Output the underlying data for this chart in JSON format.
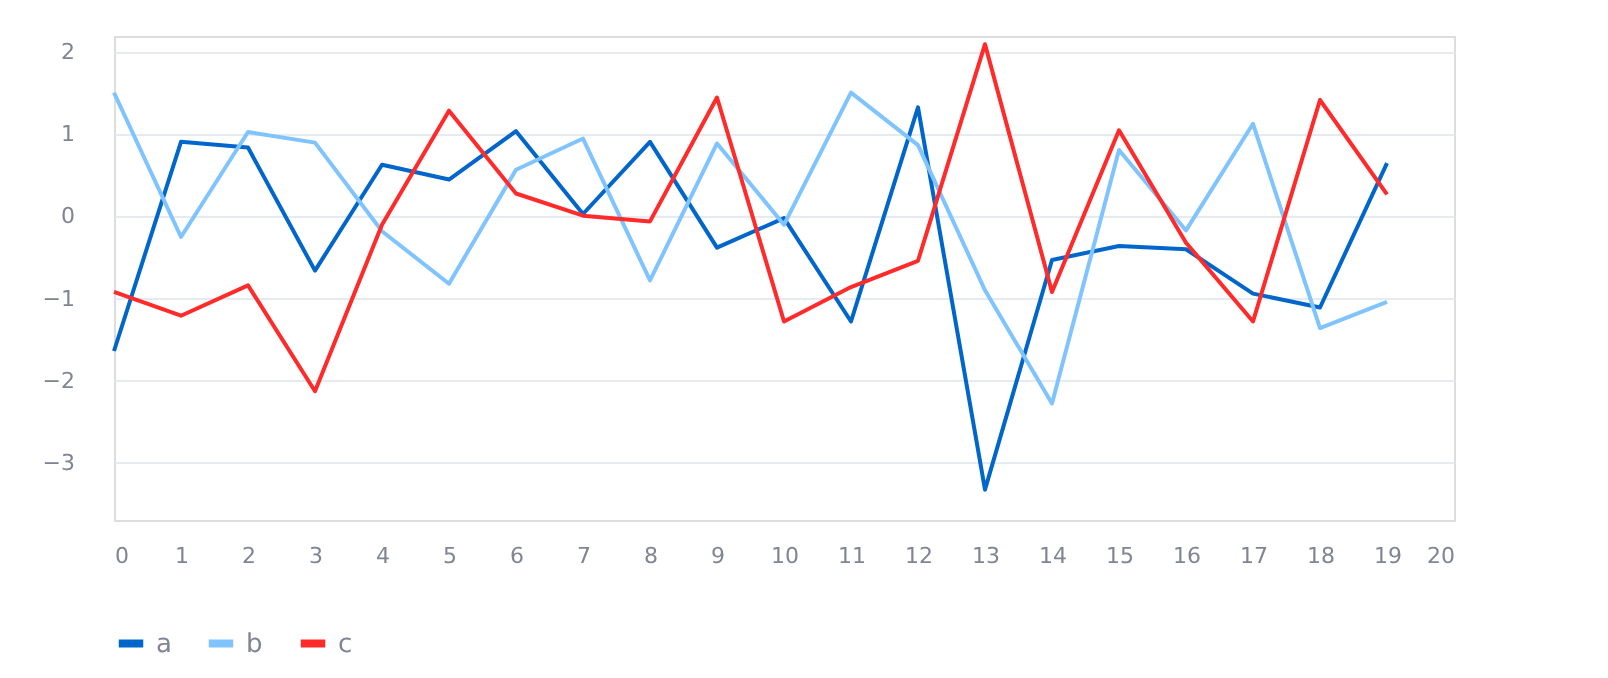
{
  "chart_data": {
    "type": "line",
    "x": [
      0,
      1,
      2,
      3,
      4,
      5,
      6,
      7,
      8,
      9,
      10,
      11,
      12,
      13,
      14,
      15,
      16,
      17,
      18,
      19
    ],
    "xlim": [
      0,
      20
    ],
    "xticks": [
      0,
      1,
      2,
      3,
      4,
      5,
      6,
      7,
      8,
      9,
      10,
      11,
      12,
      13,
      14,
      15,
      16,
      17,
      18,
      19,
      20
    ],
    "ylim": [
      -3.7,
      2.2
    ],
    "yticks": [
      -3,
      -2,
      -1,
      0,
      1,
      2
    ],
    "grid": "y",
    "legend": "bottom left",
    "marker": "none",
    "line_style": "solid",
    "series": [
      {
        "name": "a",
        "color": "#0066cc",
        "values": [
          -1.64,
          0.91,
          0.84,
          -0.66,
          0.63,
          0.45,
          1.04,
          0.03,
          0.91,
          -0.38,
          -0.02,
          -1.28,
          1.33,
          -3.33,
          -0.53,
          -0.36,
          -0.4,
          -0.94,
          -1.11,
          0.65
        ]
      },
      {
        "name": "b",
        "color": "#80c4ff",
        "values": [
          1.51,
          -0.25,
          1.03,
          0.9,
          -0.18,
          -0.82,
          0.57,
          0.95,
          -0.78,
          0.89,
          -0.1,
          1.51,
          0.87,
          -0.9,
          -2.28,
          0.81,
          -0.17,
          1.13,
          -1.36,
          -1.04
        ]
      },
      {
        "name": "c",
        "color": "#ff2b2b",
        "values": [
          -0.92,
          -1.21,
          -0.84,
          -2.13,
          -0.1,
          1.29,
          0.28,
          0.01,
          -0.06,
          1.45,
          -1.28,
          -0.86,
          -0.54,
          2.1,
          -0.92,
          1.05,
          -0.32,
          -1.28,
          1.42,
          0.27
        ]
      }
    ]
  }
}
